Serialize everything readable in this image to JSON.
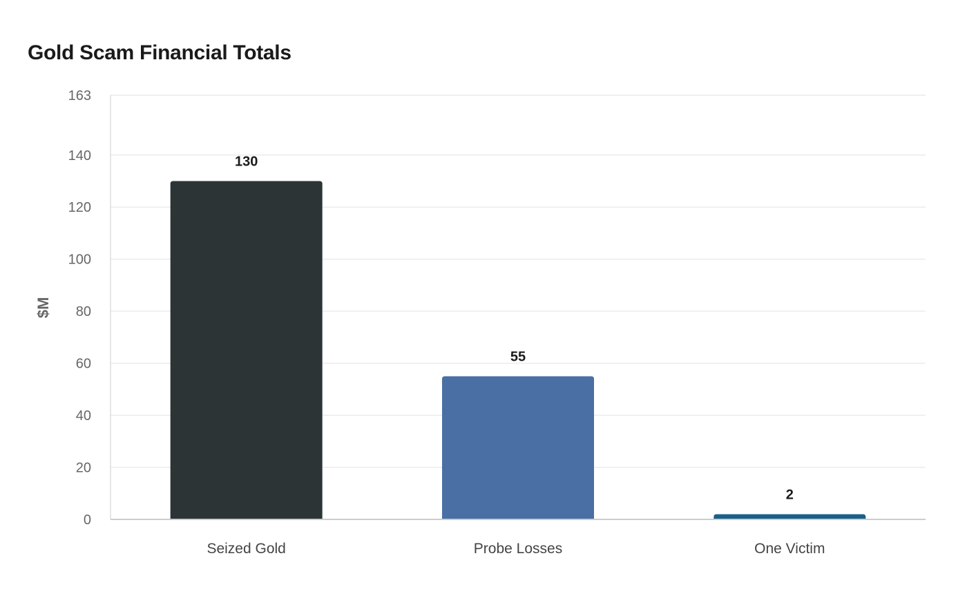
{
  "chart_data": {
    "type": "bar",
    "title": "Gold Scam Financial Totals",
    "xlabel": "",
    "ylabel": "$M",
    "categories": [
      "Seized Gold",
      "Probe Losses",
      "One Victim"
    ],
    "values": [
      130,
      55,
      2
    ],
    "colors": [
      "#2d3436",
      "#4a6fa5",
      "#1b5f8a"
    ],
    "ylim": [
      0,
      163
    ],
    "yticks": [
      0,
      20,
      40,
      60,
      80,
      100,
      120,
      140,
      163
    ],
    "grid": true,
    "legend": "none"
  }
}
